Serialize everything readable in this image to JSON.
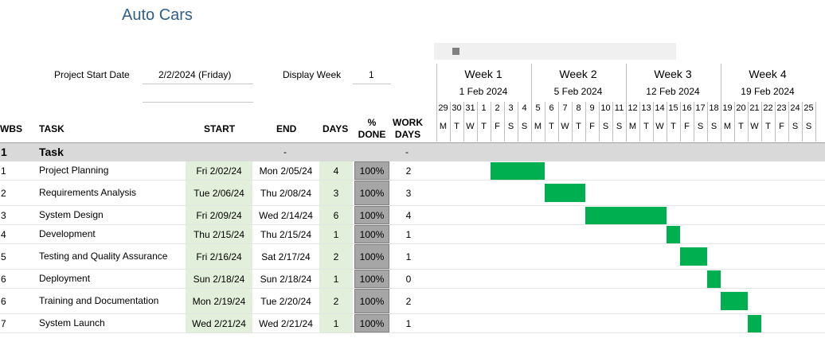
{
  "title": "Auto Cars",
  "project_start": {
    "label": "Project Start Date",
    "value": "2/2/2024 (Friday)"
  },
  "display_week": {
    "label": "Display Week",
    "value": "1"
  },
  "columns": {
    "wbs": "WBS",
    "task": "TASK",
    "start": "START",
    "end": "END",
    "days": "DAYS",
    "done_line1": "%",
    "done_line2": "DONE",
    "work_line1": "WORK",
    "work_line2": "DAYS"
  },
  "weeks": [
    {
      "label": "Week 1",
      "date": "1 Feb 2024"
    },
    {
      "label": "Week 2",
      "date": "5 Feb 2024"
    },
    {
      "label": "Week 3",
      "date": "12 Feb 2024"
    },
    {
      "label": "Week 4",
      "date": "19 Feb 2024"
    }
  ],
  "day_numbers": [
    "29",
    "30",
    "31",
    "1",
    "2",
    "3",
    "4",
    "5",
    "6",
    "7",
    "8",
    "9",
    "10",
    "11",
    "12",
    "13",
    "14",
    "15",
    "16",
    "17",
    "18",
    "19",
    "20",
    "21",
    "22",
    "23",
    "24",
    "25"
  ],
  "day_letters": [
    "M",
    "T",
    "W",
    "T",
    "F",
    "S",
    "S",
    "M",
    "T",
    "W",
    "T",
    "F",
    "S",
    "S",
    "M",
    "T",
    "W",
    "T",
    "F",
    "S",
    "S",
    "M",
    "T",
    "W",
    "T",
    "F",
    "S",
    "S"
  ],
  "group": {
    "wbs": "1",
    "task": "Task",
    "end": "-",
    "workdays": "-"
  },
  "tasks": [
    {
      "wbs": "1",
      "task": "Project Planning",
      "start": "Fri 2/02/24",
      "end": "Mon 2/05/24",
      "days": "4",
      "done": "100%",
      "workdays": "2",
      "bar_start_day": 4,
      "bar_days": 4
    },
    {
      "wbs": "2",
      "task": "Requirements Analysis",
      "start": "Tue 2/06/24",
      "end": "Thu 2/08/24",
      "days": "3",
      "done": "100%",
      "workdays": "3",
      "bar_start_day": 8,
      "bar_days": 3
    },
    {
      "wbs": "3",
      "task": "System Design",
      "start": "Fri 2/09/24",
      "end": "Wed 2/14/24",
      "days": "6",
      "done": "100%",
      "workdays": "4",
      "bar_start_day": 11,
      "bar_days": 6
    },
    {
      "wbs": "4",
      "task": "Development",
      "start": "Thu 2/15/24",
      "end": "Thu 2/15/24",
      "days": "1",
      "done": "100%",
      "workdays": "1",
      "bar_start_day": 17,
      "bar_days": 1
    },
    {
      "wbs": "5",
      "task": "Testing and Quality Assurance",
      "start": "Fri 2/16/24",
      "end": "Sat 2/17/24",
      "days": "2",
      "done": "100%",
      "workdays": "1",
      "bar_start_day": 18,
      "bar_days": 2
    },
    {
      "wbs": "6",
      "task": "Deployment",
      "start": "Sun 2/18/24",
      "end": "Sun 2/18/24",
      "days": "1",
      "done": "100%",
      "workdays": "0",
      "bar_start_day": 20,
      "bar_days": 1
    },
    {
      "wbs": "6",
      "task": "Training and Documentation",
      "start": "Mon 2/19/24",
      "end": "Tue 2/20/24",
      "days": "2",
      "done": "100%",
      "workdays": "2",
      "bar_start_day": 21,
      "bar_days": 2
    },
    {
      "wbs": "7",
      "task": "System Launch",
      "start": "Wed 2/21/24",
      "end": "Wed 2/21/24",
      "days": "1",
      "done": "100%",
      "workdays": "1",
      "bar_start_day": 23,
      "bar_days": 1
    }
  ],
  "colors": {
    "bar": "#00b050",
    "start_fill": "#e2efda",
    "done_fill": "#a6a6a6",
    "group_fill": "#d9d9d9",
    "title": "#2f5f8a"
  }
}
